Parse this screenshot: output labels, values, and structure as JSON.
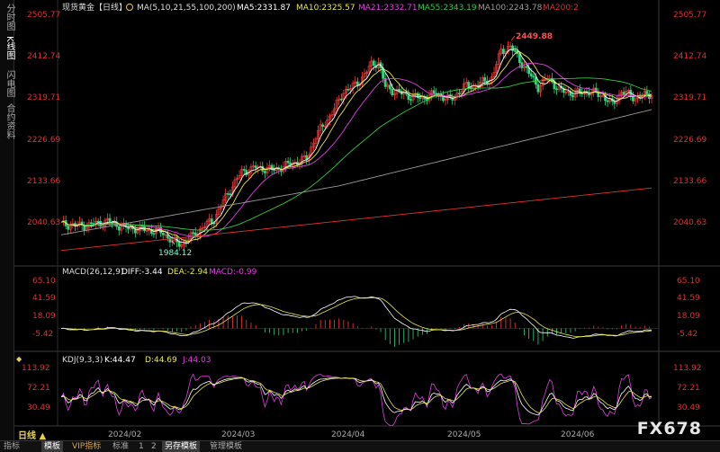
{
  "sidebar": {
    "tabs": [
      {
        "label": "分时图",
        "active": false
      },
      {
        "label": "K线图",
        "active": true
      },
      {
        "label": "闪电图",
        "active": false
      },
      {
        "label": "合约资料",
        "active": false
      }
    ]
  },
  "header": {
    "instrument": "现货黄金【日线】",
    "ma_label": "MA(5,10,21,55,100,200)",
    "ma5": "MA5:2331.87",
    "ma10": "MA10:2325.57",
    "ma21": "MA21:2332.71",
    "ma55": "MA55:2343.19",
    "ma100": "MA100:2243.78",
    "ma200": "MA200:2"
  },
  "price_axis": {
    "ticks": [
      "2505.77",
      "2412.74",
      "2319.71",
      "2226.69",
      "2133.66",
      "2040.63"
    ],
    "high_label": "2449.88",
    "low_label": "1984.12"
  },
  "macd": {
    "label": "MACD(26,12,9)",
    "diff": "DIFF:-3.44",
    "dea": "DEA:-2.94",
    "macd": "MACD:-0.99",
    "ticks": [
      "65.10",
      "41.59",
      "18.09",
      "-5.42"
    ]
  },
  "kdj": {
    "label": "KDJ(9,3,3)",
    "k": "K:44.47",
    "d": "D:44.69",
    "j": "J:44.03",
    "ticks": [
      "113.92",
      "72.21",
      "30.49"
    ]
  },
  "time_axis": [
    "2024/02",
    "2024/03",
    "2024/04",
    "2024/05",
    "2024/06"
  ],
  "period_button": "日线 ▲",
  "bottom_bar": {
    "items": [
      {
        "label": "指标",
        "active": false,
        "vip": false
      },
      {
        "label": "模板",
        "active": true,
        "vip": false
      },
      {
        "label": "VIP指标",
        "active": false,
        "vip": true
      },
      {
        "label": "标准",
        "active": false,
        "vip": false
      },
      {
        "label": "1",
        "active": false,
        "vip": false
      },
      {
        "label": "2",
        "active": false,
        "vip": false
      },
      {
        "label": "另存模板",
        "active": true,
        "vip": false
      },
      {
        "label": "管理模板",
        "active": false,
        "vip": false
      }
    ]
  },
  "watermark": "FX678",
  "colors": {
    "bull": "#ff3b3b",
    "bear": "#2fd67a",
    "ma5": "#ffffff",
    "ma10": "#e8e84a",
    "ma21": "#e040e0",
    "ma55": "#2ecc40",
    "ma100": "#9a9a9a",
    "ma200": "#e0302a",
    "axis_text": "#e03030"
  },
  "chart_data": {
    "type": "candlestick",
    "title": "现货黄金【日线】",
    "x_ticks": [
      "2024/02",
      "2024/03",
      "2024/04",
      "2024/05",
      "2024/06"
    ],
    "ylim": [
      2040.63,
      2505.77
    ],
    "high": 2449.88,
    "low": 1984.12,
    "series": [
      {
        "name": "MA5",
        "last": 2331.87
      },
      {
        "name": "MA10",
        "last": 2325.57
      },
      {
        "name": "MA21",
        "last": 2332.71
      },
      {
        "name": "MA55",
        "last": 2343.19
      },
      {
        "name": "MA100",
        "last": 2243.78
      }
    ],
    "macd": {
      "diff": -3.44,
      "dea": -2.94,
      "macd": -0.99,
      "ylim": [
        -5.42,
        65.1
      ]
    },
    "kdj": {
      "k": 44.47,
      "d": 44.69,
      "j": 44.03,
      "ylim": [
        30.49,
        113.92
      ]
    }
  }
}
